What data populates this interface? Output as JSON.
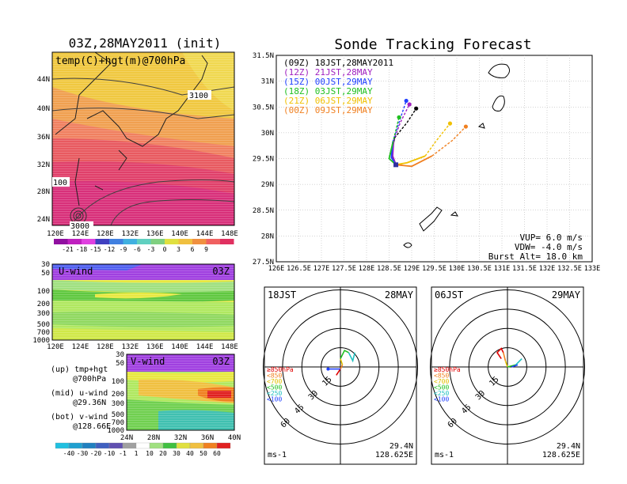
{
  "left": {
    "title": "03Z,28MAY2011 (init)",
    "map_label": "temp(C)+hgt(m)@700hPa",
    "lat_ticks": [
      "44N",
      "40N",
      "36N",
      "32N",
      "28N",
      "24N"
    ],
    "lon_ticks": [
      "120E",
      "124E",
      "128E",
      "132E",
      "136E",
      "140E",
      "144E",
      "148E"
    ],
    "contour_labels": [
      "3100",
      "100",
      "3000"
    ],
    "colorbar_ticks": [
      "-21",
      "-18",
      "-15",
      "-12",
      "-9",
      "-6",
      "-3",
      "0",
      "3",
      "6",
      "9"
    ],
    "uwind": {
      "label": "U-wind",
      "time": "03Z",
      "p_ticks": [
        "30",
        "50",
        "100",
        "200",
        "300",
        "500",
        "700",
        "1000"
      ],
      "lon_ticks": [
        "120E",
        "124E",
        "128E",
        "132E",
        "136E",
        "140E",
        "144E",
        "148E"
      ]
    },
    "vwind": {
      "label": "V-wind",
      "time": "03Z",
      "p_ticks": [
        "30",
        "50",
        "100",
        "200",
        "300",
        "500",
        "700",
        "1000"
      ],
      "lat_ticks": [
        "24N",
        "28N",
        "32N",
        "36N",
        "40N"
      ]
    },
    "notes": [
      "(up) tmp+hgt",
      "@700hPa",
      "(mid) u-wind",
      "@29.36N",
      "(bot) v-wind",
      "@128.66E"
    ],
    "wind_colorbar_ticks": [
      "-40",
      "-30",
      "-20",
      "-10",
      "-1",
      "1",
      "10",
      "20",
      "30",
      "40",
      "50",
      "60"
    ]
  },
  "right": {
    "title": "Sonde Tracking Forecast",
    "lat_ticks": [
      "31.5N",
      "31N",
      "30.5N",
      "30N",
      "29.5N",
      "29N",
      "28.5N",
      "28N",
      "27.5N"
    ],
    "lon_ticks": [
      "126E",
      "126.5E",
      "127E",
      "127.5E",
      "128E",
      "128.5E",
      "129E",
      "129.5E",
      "130E",
      "130.5E",
      "131E",
      "131.5E",
      "132E",
      "132.5E",
      "133E"
    ],
    "legend": [
      {
        "text": "(09Z) 18JST,28MAY2011",
        "color": "#000000"
      },
      {
        "text": "(12Z) 21JST,28MAY",
        "color": "#a020c0"
      },
      {
        "text": "(15Z) 00JST,29MAY",
        "color": "#2040ff"
      },
      {
        "text": "(18Z) 03JST,29MAY",
        "color": "#20c020"
      },
      {
        "text": "(21Z) 06JST,29MAY",
        "color": "#f0c000"
      },
      {
        "text": "(00Z) 09JST,29MAY",
        "color": "#f08020"
      }
    ],
    "params": [
      "VUP= 6.0 m/s",
      "VDW= -4.0 m/s",
      "Burst Alt= 18.0 km"
    ]
  },
  "hodographs": [
    {
      "time": "18JST",
      "date": "28MAY",
      "lat": "29.4N",
      "lon": "128.625E",
      "unit": "ms-1",
      "rings": [
        "15",
        "30",
        "45",
        "60"
      ]
    },
    {
      "time": "06JST",
      "date": "29MAY",
      "lat": "29.4N",
      "lon": "128.625E",
      "unit": "ms-1",
      "rings": [
        "15",
        "30",
        "45",
        "60"
      ]
    }
  ],
  "hodo_legend": [
    {
      "text": "≥850hPa",
      "color": "#e00000"
    },
    {
      "text": "<850",
      "color": "#f08020"
    },
    {
      "text": "<700",
      "color": "#e0c000"
    },
    {
      "text": "<500",
      "color": "#20c020"
    },
    {
      "text": "<250",
      "color": "#20c0c0"
    },
    {
      "text": "<100",
      "color": "#2040ff"
    }
  ],
  "chart_data": [
    {
      "type": "line",
      "title": "Sonde Tracking Forecast",
      "xlim": [
        126,
        133
      ],
      "ylim": [
        27.5,
        31.5
      ],
      "launch": {
        "lon": 128.65,
        "lat": 29.38
      },
      "series": [
        {
          "name": "(09Z) 18JST,28MAY2011",
          "color": "#000000",
          "points": [
            [
              128.65,
              29.38
            ],
            [
              128.55,
              29.6
            ],
            [
              128.62,
              29.9
            ],
            [
              128.9,
              30.2
            ],
            [
              129.1,
              30.47
            ]
          ]
        },
        {
          "name": "(12Z) 21JST,28MAY",
          "color": "#a020c0",
          "points": [
            [
              128.65,
              29.38
            ],
            [
              128.58,
              29.55
            ],
            [
              128.6,
              29.85
            ],
            [
              128.75,
              30.2
            ],
            [
              128.95,
              30.55
            ]
          ]
        },
        {
          "name": "(15Z) 00JST,29MAY",
          "color": "#2040ff",
          "points": [
            [
              128.65,
              29.38
            ],
            [
              128.55,
              29.52
            ],
            [
              128.58,
              29.82
            ],
            [
              128.72,
              30.2
            ],
            [
              128.88,
              30.62
            ]
          ]
        },
        {
          "name": "(18Z) 03JST,29MAY",
          "color": "#20c020",
          "points": [
            [
              128.65,
              29.38
            ],
            [
              128.5,
              29.5
            ],
            [
              128.58,
              29.8
            ],
            [
              128.65,
              30.05
            ],
            [
              128.72,
              30.3
            ]
          ]
        },
        {
          "name": "(21Z) 06JST,29MAY",
          "color": "#f0c000",
          "points": [
            [
              128.65,
              29.38
            ],
            [
              128.9,
              29.42
            ],
            [
              129.3,
              29.55
            ],
            [
              129.55,
              29.85
            ],
            [
              129.85,
              30.18
            ]
          ]
        },
        {
          "name": "(00Z) 09JST,29MAY",
          "color": "#f08020",
          "points": [
            [
              128.65,
              29.38
            ],
            [
              129.0,
              29.35
            ],
            [
              129.45,
              29.55
            ],
            [
              129.9,
              29.85
            ],
            [
              130.2,
              30.12
            ]
          ]
        }
      ]
    },
    {
      "type": "line",
      "title": "18JST 28MAY",
      "series": [
        {
          "name": "≥850hPa",
          "color": "#e00000",
          "points": [
            [
              -2,
              -4
            ],
            [
              0,
              -1
            ]
          ]
        },
        {
          "name": "<850",
          "color": "#f08020",
          "points": [
            [
              0,
              -1
            ],
            [
              1,
              1
            ]
          ]
        },
        {
          "name": "<700",
          "color": "#e0c000",
          "points": [
            [
              1,
              1
            ],
            [
              0,
              4
            ]
          ]
        },
        {
          "name": "<500",
          "color": "#20c020",
          "points": [
            [
              0,
              4
            ],
            [
              2,
              8
            ],
            [
              4,
              7
            ]
          ]
        },
        {
          "name": "<250",
          "color": "#20c0c0",
          "points": [
            [
              4,
              7
            ],
            [
              6,
              3
            ],
            [
              7,
              7
            ]
          ]
        },
        {
          "name": "<100",
          "color": "#2040ff",
          "points": [
            [
              -6,
              -1
            ],
            [
              -2,
              -1
            ],
            [
              0,
              -1
            ]
          ]
        }
      ]
    },
    {
      "type": "line",
      "title": "06JST 29MAY",
      "series": [
        {
          "name": "≥850hPa",
          "color": "#e00000",
          "points": [
            [
              -3,
              4
            ],
            [
              -5,
              7
            ],
            [
              -3,
              9
            ],
            [
              -2,
              7
            ]
          ]
        },
        {
          "name": "<850",
          "color": "#f08020",
          "points": [
            [
              -2,
              7
            ],
            [
              -1,
              3
            ]
          ]
        },
        {
          "name": "<700",
          "color": "#e0c000",
          "points": [
            [
              -1,
              3
            ],
            [
              0,
              0
            ]
          ]
        },
        {
          "name": "<500",
          "color": "#20c020",
          "points": [
            [
              0,
              0
            ],
            [
              4,
              1
            ]
          ]
        },
        {
          "name": "<250",
          "color": "#20c0c0",
          "points": [
            [
              4,
              1
            ],
            [
              7,
              4
            ]
          ]
        },
        {
          "name": "<100",
          "color": "#2040ff",
          "points": [
            [
              2,
              0
            ],
            [
              5,
              1
            ]
          ]
        }
      ]
    }
  ]
}
